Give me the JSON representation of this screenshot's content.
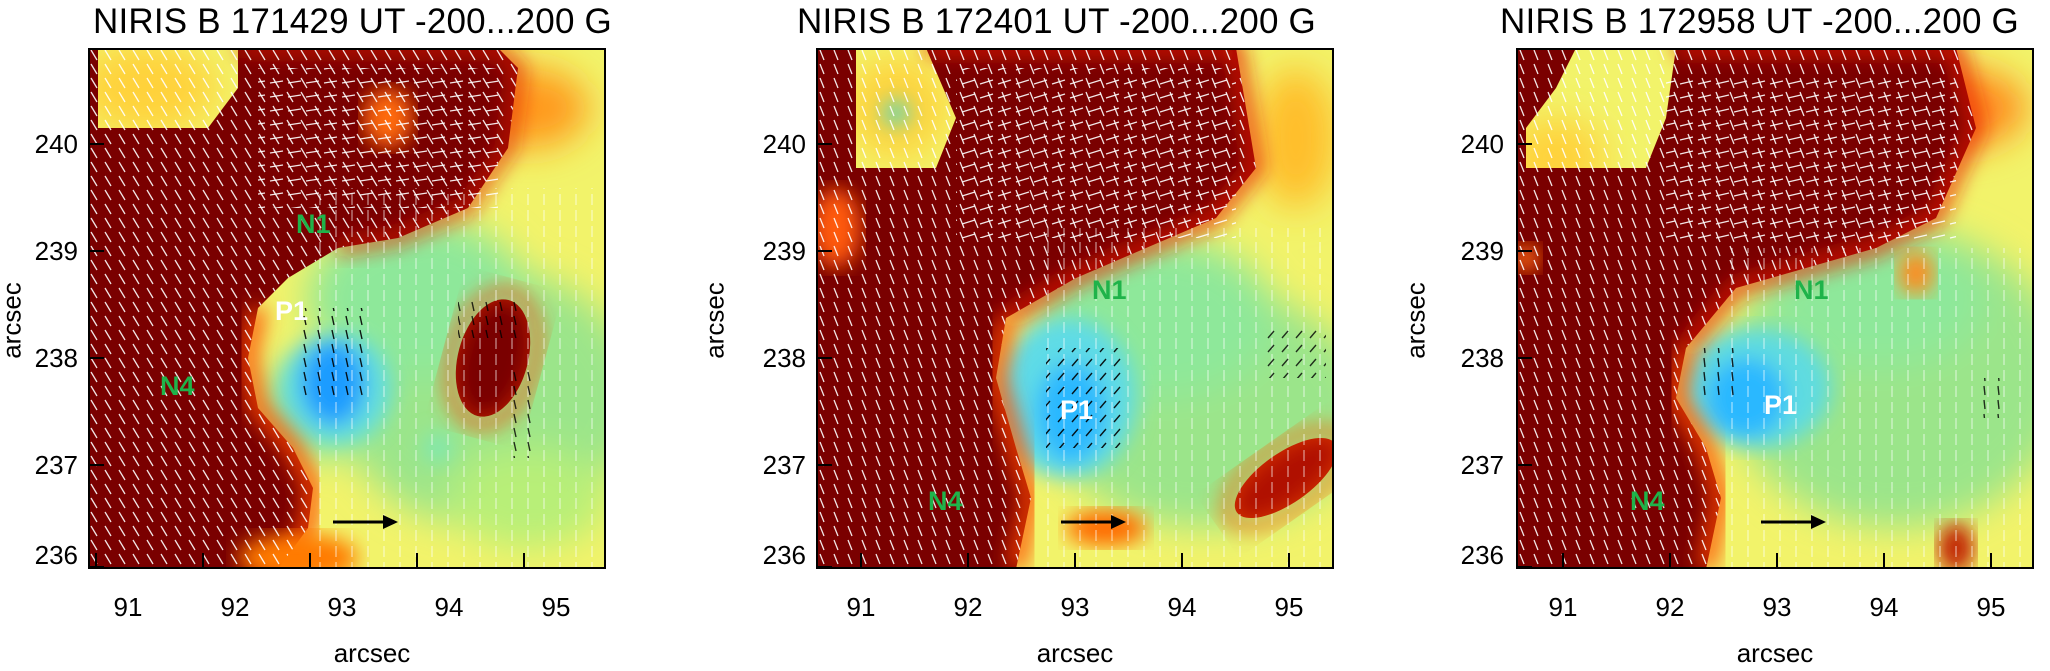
{
  "panels": [
    {
      "title": "NIRIS B 171429 UT -200...200 G",
      "xlabel": "arcsec",
      "ylabel": "arcsec",
      "labels": {
        "n1": "N1",
        "p1": "P1",
        "n4": "N4"
      }
    },
    {
      "title": "NIRIS B 172401 UT -200...200 G",
      "xlabel": "arcsec",
      "ylabel": "arcsec",
      "labels": {
        "n1": "N1",
        "p1": "P1",
        "n4": "N4"
      }
    },
    {
      "title": "NIRIS B 172958 UT -200...200 G",
      "xlabel": "arcsec",
      "ylabel": "arcsec",
      "labels": {
        "n1": "N1",
        "p1": "P1",
        "n4": "N4"
      }
    }
  ],
  "axes": {
    "xticks": [
      "91",
      "92",
      "93",
      "94",
      "95"
    ],
    "yticks": [
      "240",
      "239",
      "238",
      "237",
      "236"
    ]
  },
  "colors": {
    "positive": "#7a0000",
    "negative_core": "#1a9cff",
    "field": "#f2f36a",
    "label_green": "#1fb34a",
    "vectors": "#ffffff"
  },
  "colormap_range": "-200...200 G"
}
